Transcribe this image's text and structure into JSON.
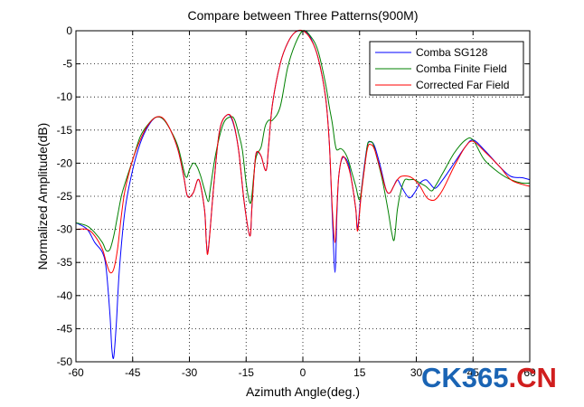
{
  "chart_data": {
    "type": "line",
    "title": "Compare between Three Patterns(900M)",
    "xlabel": "Azimuth Angle(deg.)",
    "ylabel": "Normalized Amplitude(dB)",
    "xlim": [
      -60,
      60
    ],
    "ylim": [
      -50,
      0
    ],
    "xticks": [
      -60,
      -45,
      -30,
      -15,
      0,
      15,
      30,
      45,
      60
    ],
    "xtick_labels": [
      "-60",
      "-45",
      "-30",
      "-15",
      "0",
      "15",
      "30",
      "45",
      "60"
    ],
    "yticks": [
      0,
      -5,
      -10,
      -15,
      -20,
      -25,
      -30,
      -35,
      -40,
      -45,
      -50
    ],
    "ytick_labels": [
      "0",
      "-5",
      "-10",
      "-15",
      "-20",
      "-25",
      "-30",
      "-35",
      "-40",
      "-45",
      "-50"
    ],
    "grid": true,
    "legend_position": "top-right",
    "series": [
      {
        "name": "Comba SG128",
        "color": "#0000ff",
        "x": [
          -60,
          -57,
          -55,
          -53,
          -52,
          -51,
          -50.5,
          -50,
          -49.3,
          -48.5,
          -47,
          -45,
          -43,
          -41,
          -39,
          -37,
          -35,
          -33,
          -31.5,
          -30.5,
          -29,
          -27.5,
          -26,
          -25.5,
          -25,
          -23.5,
          -22,
          -20,
          -18.5,
          -17,
          -15.5,
          -14,
          -13.5,
          -13,
          -12.5,
          -12,
          -11,
          -10,
          -9.5,
          -9,
          -8,
          -6,
          -4,
          -2,
          0,
          1,
          2,
          4,
          6,
          7,
          7.8,
          8.5,
          9,
          9.5,
          10.5,
          12,
          13,
          14,
          14.5,
          15.5,
          17,
          18,
          19,
          20.5,
          22,
          23,
          24,
          25,
          26,
          28,
          29.5,
          31,
          32.5,
          33.5,
          35,
          37,
          40,
          43,
          45,
          48,
          52,
          55,
          58,
          60
        ],
        "y": [
          -29,
          -30,
          -32,
          -33.5,
          -36,
          -43,
          -48,
          -49.3,
          -44,
          -36,
          -27,
          -21,
          -17,
          -14.5,
          -13.1,
          -13.3,
          -15,
          -18,
          -22,
          -25,
          -24.5,
          -22.5,
          -27,
          -32,
          -33,
          -23,
          -15,
          -12.7,
          -13.8,
          -18,
          -26,
          -31,
          -27,
          -22.5,
          -19,
          -18.3,
          -19,
          -21,
          -20.5,
          -17,
          -11,
          -5,
          -1.8,
          -0.2,
          0,
          -0.3,
          -1,
          -4,
          -10,
          -17,
          -28,
          -36.5,
          -28,
          -22,
          -19.2,
          -20,
          -23,
          -27,
          -29.8,
          -24,
          -17.5,
          -16.8,
          -17.5,
          -20.5,
          -24,
          -24.5,
          -23.5,
          -22.5,
          -23.5,
          -25.2,
          -24.5,
          -23,
          -22.5,
          -23,
          -23.8,
          -22.5,
          -20,
          -17.5,
          -16.5,
          -18,
          -20.5,
          -22,
          -22.2,
          -22.5
        ]
      },
      {
        "name": "Comba Finite Field",
        "color": "#008000",
        "x": [
          -60,
          -57,
          -55,
          -53,
          -52,
          -51,
          -50,
          -49,
          -48,
          -47,
          -45,
          -43,
          -41,
          -39,
          -37,
          -35,
          -33,
          -31,
          -30,
          -29,
          -28,
          -27,
          -26,
          -25,
          -24.5,
          -23,
          -21,
          -19,
          -18,
          -17,
          -16,
          -15,
          -14,
          -13.5,
          -13,
          -12.5,
          -12,
          -11,
          -10,
          -9,
          -8,
          -6,
          -4,
          -2,
          0,
          2,
          4,
          6,
          7,
          7.8,
          8.5,
          9,
          10,
          11,
          12,
          13,
          14,
          15,
          16,
          17,
          17.5,
          18.5,
          19.5,
          21,
          22.5,
          23.5,
          24.2,
          25,
          26,
          27,
          28,
          29.5,
          31,
          32.5,
          34,
          35,
          37,
          40,
          43,
          45,
          48,
          52,
          55,
          58,
          60
        ],
        "y": [
          -29,
          -29.5,
          -30.5,
          -32,
          -33.2,
          -33,
          -31,
          -28,
          -25,
          -23,
          -19.5,
          -16,
          -14.2,
          -13.1,
          -13.3,
          -15,
          -17.5,
          -22,
          -21,
          -20,
          -20.5,
          -22,
          -24,
          -25.8,
          -24,
          -18.5,
          -14,
          -13,
          -13.5,
          -15.5,
          -18,
          -23,
          -26,
          -25,
          -22,
          -19.5,
          -18.5,
          -17.5,
          -14.5,
          -13.5,
          -13.5,
          -11.5,
          -5.5,
          -2,
          0,
          -0.8,
          -3,
          -8,
          -11.5,
          -14,
          -17,
          -18,
          -17.8,
          -18.3,
          -19.5,
          -21.5,
          -23.5,
          -25.5,
          -22,
          -17.5,
          -16.8,
          -17,
          -19,
          -22.5,
          -27,
          -30.5,
          -31.5,
          -27,
          -24,
          -22.5,
          -22.5,
          -22.5,
          -23,
          -23.5,
          -24.2,
          -23.5,
          -21.5,
          -18.5,
          -16.5,
          -16.5,
          -19.5,
          -21.5,
          -22.5,
          -23,
          -23
        ]
      },
      {
        "name": "Corrected Far Field",
        "color": "#ff0000",
        "x": [
          -60,
          -57,
          -55,
          -53,
          -52,
          -51,
          -50,
          -49,
          -48,
          -47,
          -45,
          -43,
          -41,
          -39,
          -37,
          -35,
          -33,
          -31.5,
          -30.5,
          -29,
          -27.5,
          -26,
          -25.5,
          -25,
          -23.5,
          -22,
          -20,
          -18.5,
          -17,
          -15.5,
          -14,
          -13.5,
          -13,
          -12.5,
          -12,
          -11,
          -10,
          -9.5,
          -9,
          -8,
          -6,
          -4,
          -2,
          0,
          2,
          4,
          6,
          7,
          7.8,
          8.5,
          9,
          9.5,
          10.5,
          12,
          13,
          14,
          14.5,
          15.5,
          17,
          18,
          19,
          20.5,
          22,
          23,
          24,
          25,
          26,
          28,
          29.5,
          31,
          32.5,
          33.5,
          35,
          37,
          40,
          43,
          45,
          48,
          52,
          55,
          58,
          60
        ],
        "y": [
          -30,
          -30,
          -31,
          -33,
          -35,
          -36.5,
          -36,
          -33,
          -28,
          -24,
          -19.5,
          -16.5,
          -14.3,
          -13.1,
          -13.2,
          -15,
          -18,
          -22,
          -25,
          -24.5,
          -22.5,
          -27,
          -32,
          -33.2,
          -23,
          -15,
          -12.7,
          -13.6,
          -18,
          -26,
          -31,
          -27,
          -22.5,
          -19,
          -18.2,
          -19,
          -21,
          -20.5,
          -17,
          -11,
          -5,
          -1.8,
          -0.2,
          0,
          -1.2,
          -4,
          -10,
          -17,
          -27,
          -32,
          -27,
          -22,
          -19,
          -20.5,
          -23,
          -27,
          -30.2,
          -24.5,
          -18,
          -17.2,
          -18,
          -21,
          -24,
          -24.5,
          -23.5,
          -22.5,
          -22,
          -22,
          -22.5,
          -23.5,
          -25,
          -25.5,
          -25.5,
          -24,
          -20.5,
          -17.5,
          -16.7,
          -18.2,
          -20.5,
          -22.5,
          -23.2,
          -23.5
        ]
      }
    ]
  },
  "watermark": {
    "text_main": "CK365",
    "text_accent": ".CN",
    "color_main": "#1a64b4",
    "color_accent": "#d01e1e"
  }
}
